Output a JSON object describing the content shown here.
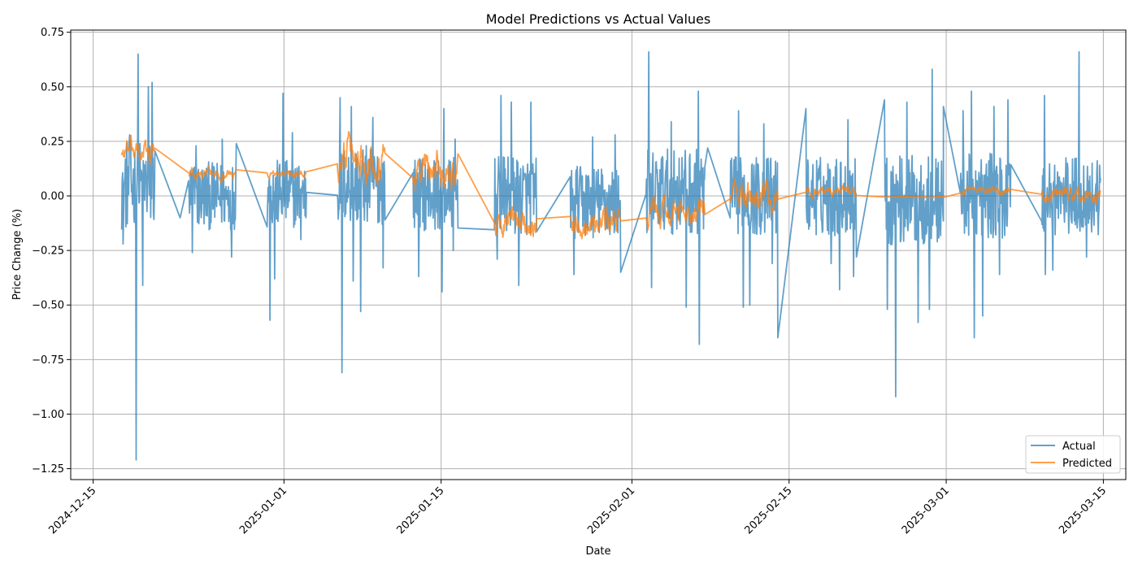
{
  "chart_data": {
    "type": "line",
    "title": "Model Predictions vs Actual Values",
    "xlabel": "Date",
    "ylabel": "Price Change (%)",
    "xlim": [
      "2024-12-13",
      "2025-03-17"
    ],
    "ylim": [
      -1.3,
      0.76
    ],
    "x_ticks": [
      "2024-12-15",
      "2025-01-01",
      "2025-01-15",
      "2025-02-01",
      "2025-02-15",
      "2025-03-01",
      "2025-03-15"
    ],
    "y_ticks": [
      0.75,
      0.5,
      0.25,
      0.0,
      -0.25,
      -0.5,
      -0.75,
      -1.0,
      -1.25
    ],
    "y_tick_labels": [
      "0.75",
      "0.50",
      "0.25",
      "0.00",
      "−0.25",
      "−0.50",
      "−0.75",
      "−1.00",
      "−1.25"
    ],
    "grid": true,
    "legend_position": "lower-right",
    "series": [
      {
        "name": "Actual",
        "color": "#1f77b4",
        "opacity": 0.7,
        "segments": [
          {
            "start": "2024-12-17 12:00",
            "end": "2024-12-20 12:00",
            "mean": 0.05,
            "amp": 0.16,
            "spikes": [
              [
                "2024-12-19 00:00",
                0.65
              ],
              [
                "2024-12-18 20:00",
                -1.21
              ],
              [
                "2024-12-19 10:00",
                -0.41
              ],
              [
                "2024-12-19 22:00",
                0.5
              ],
              [
                "2024-12-20 06:00",
                0.52
              ],
              [
                "2024-12-18 06:00",
                0.28
              ],
              [
                "2024-12-17 16:00",
                -0.22
              ]
            ]
          },
          {
            "start": "2024-12-23 12:00",
            "end": "2024-12-27 18:00",
            "mean": 0.0,
            "amp": 0.12,
            "spikes": [
              [
                "2024-12-23 20:00",
                -0.26
              ],
              [
                "2024-12-26 12:00",
                0.26
              ],
              [
                "2024-12-27 08:00",
                -0.28
              ],
              [
                "2024-12-27 20:00",
                0.24
              ],
              [
                "2024-12-24 04:00",
                0.23
              ]
            ]
          },
          {
            "start": "2024-12-30 12:00",
            "end": "2025-01-03 00:00",
            "mean": 0.01,
            "amp": 0.12,
            "spikes": [
              [
                "2024-12-30 18:00",
                -0.57
              ],
              [
                "2024-12-31 04:00",
                -0.38
              ],
              [
                "2024-12-31 22:00",
                0.47
              ],
              [
                "2025-01-01 18:00",
                0.29
              ],
              [
                "2025-01-02 12:00",
                -0.2
              ]
            ]
          },
          {
            "start": "2025-01-05 18:00",
            "end": "2025-01-10 00:00",
            "mean": 0.05,
            "amp": 0.14,
            "spikes": [
              [
                "2025-01-06 04:00",
                -0.81
              ],
              [
                "2025-01-06 00:00",
                0.45
              ],
              [
                "2025-01-07 00:00",
                0.41
              ],
              [
                "2025-01-07 20:00",
                -0.53
              ],
              [
                "2025-01-07 04:00",
                -0.39
              ],
              [
                "2025-01-08 22:00",
                0.36
              ],
              [
                "2025-01-09 20:00",
                -0.33
              ]
            ]
          },
          {
            "start": "2025-01-12 12:00",
            "end": "2025-01-16 12:00",
            "mean": 0.01,
            "amp": 0.13,
            "spikes": [
              [
                "2025-01-13 00:00",
                -0.37
              ],
              [
                "2025-01-15 06:00",
                0.4
              ],
              [
                "2025-01-15 02:00",
                -0.44
              ],
              [
                "2025-01-16 06:00",
                0.26
              ],
              [
                "2025-01-16 02:00",
                -0.25
              ]
            ]
          },
          {
            "start": "2025-01-19 18:00",
            "end": "2025-01-23 12:00",
            "mean": 0.0,
            "amp": 0.14,
            "spikes": [
              [
                "2025-01-20 08:00",
                0.46
              ],
              [
                "2025-01-21 06:00",
                0.43
              ],
              [
                "2025-01-21 22:00",
                -0.41
              ],
              [
                "2025-01-23 00:00",
                0.43
              ],
              [
                "2025-01-20 00:00",
                -0.29
              ]
            ]
          },
          {
            "start": "2025-01-26 12:00",
            "end": "2025-01-31 00:00",
            "mean": -0.03,
            "amp": 0.13,
            "spikes": [
              [
                "2025-01-26 20:00",
                -0.36
              ],
              [
                "2025-01-28 12:00",
                0.27
              ],
              [
                "2025-01-30 12:00",
                0.28
              ],
              [
                "2025-01-31 00:00",
                -0.35
              ]
            ]
          },
          {
            "start": "2025-02-02 06:00",
            "end": "2025-02-07 12:00",
            "mean": 0.02,
            "amp": 0.15,
            "spikes": [
              [
                "2025-02-02 12:00",
                0.66
              ],
              [
                "2025-02-02 18:00",
                -0.42
              ],
              [
                "2025-02-04 12:00",
                0.34
              ],
              [
                "2025-02-05 20:00",
                -0.51
              ],
              [
                "2025-02-06 22:00",
                0.48
              ],
              [
                "2025-02-07 00:00",
                -0.68
              ]
            ]
          },
          {
            "start": "2025-02-09 18:00",
            "end": "2025-02-14 00:00",
            "mean": 0.0,
            "amp": 0.14,
            "spikes": [
              [
                "2025-02-10 12:00",
                0.39
              ],
              [
                "2025-02-10 22:00",
                -0.51
              ],
              [
                "2025-02-11 12:00",
                -0.5
              ],
              [
                "2025-02-12 18:00",
                0.33
              ],
              [
                "2025-02-13 12:00",
                -0.31
              ],
              [
                "2025-02-14 00:00",
                -0.65
              ]
            ]
          },
          {
            "start": "2025-02-16 12:00",
            "end": "2025-02-21 00:00",
            "mean": 0.0,
            "amp": 0.14,
            "spikes": [
              [
                "2025-02-16 12:00",
                0.4
              ],
              [
                "2025-02-18 18:00",
                -0.31
              ],
              [
                "2025-02-19 12:00",
                -0.43
              ],
              [
                "2025-02-20 06:00",
                0.35
              ],
              [
                "2025-02-20 18:00",
                -0.37
              ],
              [
                "2025-02-21 00:00",
                -0.28
              ]
            ]
          },
          {
            "start": "2025-02-23 12:00",
            "end": "2025-02-28 18:00",
            "mean": -0.02,
            "amp": 0.16,
            "spikes": [
              [
                "2025-02-23 12:00",
                0.44
              ],
              [
                "2025-02-23 18:00",
                -0.52
              ],
              [
                "2025-02-24 12:00",
                -0.92
              ],
              [
                "2025-02-25 12:00",
                0.43
              ],
              [
                "2025-02-26 12:00",
                -0.58
              ],
              [
                "2025-02-27 18:00",
                0.58
              ],
              [
                "2025-02-27 12:00",
                -0.52
              ]
            ]
          },
          {
            "start": "2025-03-02 06:00",
            "end": "2025-03-06 18:00",
            "mean": 0.0,
            "amp": 0.15,
            "spikes": [
              [
                "2025-03-02 12:00",
                0.39
              ],
              [
                "2025-03-03 06:00",
                0.48
              ],
              [
                "2025-03-03 12:00",
                -0.65
              ],
              [
                "2025-03-04 06:00",
                -0.55
              ],
              [
                "2025-03-05 06:00",
                0.41
              ],
              [
                "2025-03-06 12:00",
                0.44
              ],
              [
                "2025-03-05 18:00",
                -0.36
              ]
            ]
          },
          {
            "start": "2025-03-09 12:00",
            "end": "2025-03-14 18:00",
            "mean": 0.0,
            "amp": 0.14,
            "spikes": [
              [
                "2025-03-09 18:00",
                0.46
              ],
              [
                "2025-03-09 20:00",
                -0.36
              ],
              [
                "2025-03-12 20:00",
                0.66
              ],
              [
                "2025-03-13 12:00",
                -0.28
              ],
              [
                "2025-03-10 12:00",
                -0.34
              ]
            ]
          }
        ],
        "bridges": [
          [
            "2024-12-22 18:00",
            -0.1
          ],
          [
            "2025-02-28 12:00",
            -0.17
          ],
          [
            "2025-02-28 18:00",
            0.41
          ],
          [
            "2025-02-07 18:00",
            0.22
          ],
          [
            "2025-01-27 00:00",
            0.1
          ]
        ]
      },
      {
        "name": "Predicted",
        "color": "#ff7f0e",
        "opacity": 0.75,
        "segments": [
          {
            "start": "2024-12-17 12:00",
            "end": "2024-12-20 12:00",
            "mean": 0.2,
            "amp": 0.06
          },
          {
            "start": "2024-12-23 12:00",
            "end": "2024-12-27 18:00",
            "mean": 0.1,
            "amp": 0.03
          },
          {
            "start": "2024-12-30 12:00",
            "end": "2025-01-03 00:00",
            "mean": 0.1,
            "amp": 0.02
          },
          {
            "start": "2025-01-05 18:00",
            "end": "2025-01-10 00:00",
            "mean": 0.18,
            "amp": 0.1
          },
          {
            "start": "2025-01-12 12:00",
            "end": "2025-01-16 12:00",
            "mean": 0.12,
            "amp": 0.1
          },
          {
            "start": "2025-01-19 18:00",
            "end": "2025-01-23 12:00",
            "mean": -0.12,
            "amp": 0.07
          },
          {
            "start": "2025-01-26 12:00",
            "end": "2025-01-31 00:00",
            "mean": -0.12,
            "amp": 0.07
          },
          {
            "start": "2025-02-02 06:00",
            "end": "2025-02-07 12:00",
            "mean": -0.08,
            "amp": 0.07
          },
          {
            "start": "2025-02-09 18:00",
            "end": "2025-02-14 00:00",
            "mean": 0.0,
            "amp": 0.08
          },
          {
            "start": "2025-02-16 12:00",
            "end": "2025-02-21 00:00",
            "mean": 0.02,
            "amp": 0.03
          },
          {
            "start": "2025-02-23 12:00",
            "end": "2025-02-28 18:00",
            "mean": -0.005,
            "amp": 0.003
          },
          {
            "start": "2025-03-02 06:00",
            "end": "2025-03-06 18:00",
            "mean": 0.02,
            "amp": 0.02
          },
          {
            "start": "2025-03-09 12:00",
            "end": "2025-03-14 18:00",
            "mean": 0.0,
            "amp": 0.04
          }
        ]
      }
    ]
  }
}
